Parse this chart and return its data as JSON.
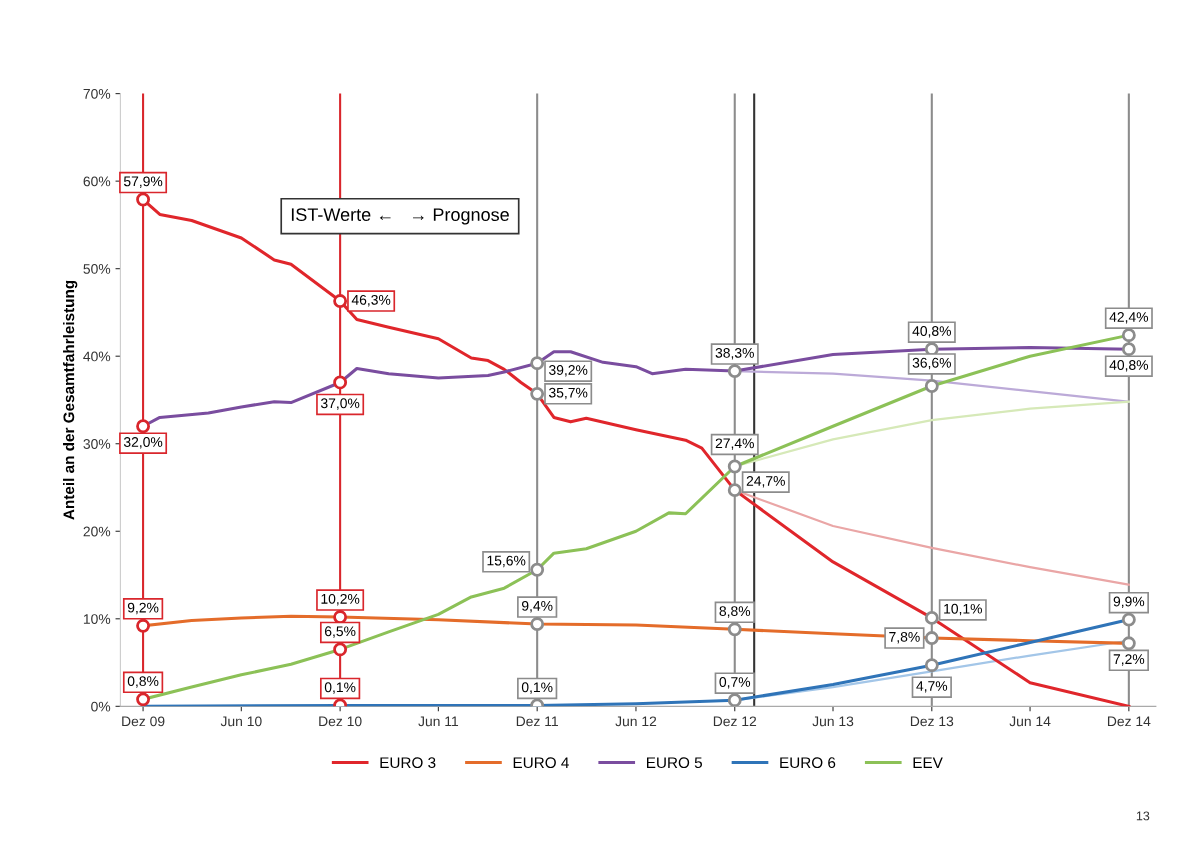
{
  "chart_data": {
    "type": "line",
    "ylabel": "Anteil an der Gesamtfahrleistung",
    "annotations": [
      "IST-Werte ←   → Prognose",
      "13"
    ],
    "xlim": [
      "2009-10-20",
      "2015-01-20"
    ],
    "xticks": [
      {
        "value": "2009-12",
        "label": "Dez 09"
      },
      {
        "value": "2010-06",
        "label": "Jun 10"
      },
      {
        "value": "2010-12",
        "label": "Dez 10"
      },
      {
        "value": "2011-06",
        "label": "Jun 11"
      },
      {
        "value": "2011-12",
        "label": "Dez 11"
      },
      {
        "value": "2012-06",
        "label": "Jun 12"
      },
      {
        "value": "2012-12",
        "label": "Dez 12"
      },
      {
        "value": "2013-06",
        "label": "Jun 13"
      },
      {
        "value": "2013-12",
        "label": "Dez 13"
      },
      {
        "value": "2014-06",
        "label": "Jun 14"
      },
      {
        "value": "2014-12",
        "label": "Dez 14"
      }
    ],
    "ylim": [
      0,
      70
    ],
    "yticks": [
      {
        "value": 0,
        "label": "0%"
      },
      {
        "value": 10,
        "label": "10%"
      },
      {
        "value": 20,
        "label": "20%"
      },
      {
        "value": 30,
        "label": "30%"
      },
      {
        "value": 40,
        "label": "40%"
      },
      {
        "value": 50,
        "label": "50%"
      },
      {
        "value": 60,
        "label": "60%"
      },
      {
        "value": 70,
        "label": "70%"
      }
    ],
    "grid": false,
    "legend": "bottom",
    "line_style": "solid",
    "ref_lines": [
      {
        "axis": "x",
        "value": "2009-12",
        "color": "#d9262c"
      },
      {
        "axis": "x",
        "value": "2010-12",
        "color": "#d9262c"
      },
      {
        "axis": "x",
        "value": "2011-12",
        "color": "#8c8c8c"
      },
      {
        "axis": "x",
        "value": "2012-12",
        "color": "#8c8c8c"
      },
      {
        "axis": "x",
        "value": "2013-01-06",
        "color": "#333333"
      },
      {
        "axis": "x",
        "value": "2013-12",
        "color": "#8c8c8c"
      },
      {
        "axis": "x",
        "value": "2014-12",
        "color": "#8c8c8c"
      }
    ],
    "series": [
      {
        "name": "EURO 3",
        "color": "#e0262b",
        "x": [
          "2009-12",
          "2010-01",
          "2010-03",
          "2010-06",
          "2010-08",
          "2010-09",
          "2010-12",
          "2011-01",
          "2011-03",
          "2011-06",
          "2011-08",
          "2011-09",
          "2011-10",
          "2011-11",
          "2011-12",
          "2012-01",
          "2012-02",
          "2012-03",
          "2012-06",
          "2012-09",
          "2012-10",
          "2012-12",
          "2013-06",
          "2013-12",
          "2014-06",
          "2014-12"
        ],
        "values": [
          57.9,
          56.2,
          55.5,
          53.5,
          51,
          50.5,
          46.3,
          44.2,
          43.3,
          42,
          39.8,
          39.5,
          38.5,
          37,
          35.7,
          33,
          32.5,
          32.9,
          31.6,
          30.4,
          29.5,
          24.7,
          16.5,
          10.1,
          2.7,
          0
        ],
        "value_labels": [
          "57,9%",
          null,
          null,
          null,
          null,
          null,
          "46,3%",
          null,
          null,
          null,
          null,
          null,
          null,
          null,
          "35,7%",
          null,
          null,
          null,
          null,
          null,
          null,
          "24,7%",
          null,
          "10,1%",
          null,
          null
        ]
      },
      {
        "name": "EURO 4",
        "color": "#e46c2a",
        "x": [
          "2009-12",
          "2010-03",
          "2010-06",
          "2010-09",
          "2010-12",
          "2011-06",
          "2011-12",
          "2012-06",
          "2012-12",
          "2013-06",
          "2013-12",
          "2014-06",
          "2014-12"
        ],
        "values": [
          9.2,
          9.8,
          10.1,
          10.3,
          10.2,
          9.9,
          9.4,
          9.3,
          8.8,
          8.3,
          7.8,
          7.5,
          7.2
        ],
        "value_labels": [
          "9,2%",
          null,
          null,
          null,
          "10,2%",
          null,
          "9,4%",
          null,
          "8,8%",
          null,
          "7,8%",
          null,
          "7,2%"
        ]
      },
      {
        "name": "EURO 5",
        "color": "#7a4d9f",
        "x": [
          "2009-12",
          "2010-01",
          "2010-04",
          "2010-06",
          "2010-08",
          "2010-09",
          "2010-12",
          "2011-01",
          "2011-03",
          "2011-06",
          "2011-09",
          "2011-10",
          "2011-12",
          "2012-01",
          "2012-02",
          "2012-04",
          "2012-06",
          "2012-07",
          "2012-09",
          "2012-12",
          "2013-06",
          "2013-12",
          "2014-06",
          "2014-12"
        ],
        "values": [
          32.0,
          33.0,
          33.5,
          34.2,
          34.8,
          34.7,
          37.0,
          38.6,
          38.0,
          37.5,
          37.8,
          38.2,
          39.2,
          40.5,
          40.5,
          39.3,
          38.8,
          38.0,
          38.5,
          38.3,
          40.2,
          40.8,
          41.0,
          40.8
        ],
        "value_labels": [
          "32,0%",
          null,
          null,
          null,
          null,
          null,
          "37,0%",
          null,
          null,
          null,
          null,
          null,
          "39,2%",
          null,
          null,
          null,
          null,
          null,
          null,
          "38,3%",
          null,
          "40,8%",
          null,
          "40,8%"
        ]
      },
      {
        "name": "EURO 6",
        "color": "#2f74b8",
        "x": [
          "2009-12",
          "2010-12",
          "2011-12",
          "2012-06",
          "2012-12",
          "2013-06",
          "2013-12",
          "2014-06",
          "2014-12"
        ],
        "values": [
          0,
          0.1,
          0.1,
          0.3,
          0.7,
          2.5,
          4.7,
          7.3,
          9.9
        ],
        "value_labels": [
          null,
          "0,1%",
          "0,1%",
          null,
          "0,7%",
          null,
          "4,7%",
          null,
          "9,9%"
        ]
      },
      {
        "name": "EEV",
        "color": "#8cc157",
        "x": [
          "2009-12",
          "2010-03",
          "2010-06",
          "2010-09",
          "2010-12",
          "2011-03",
          "2011-06",
          "2011-08",
          "2011-10",
          "2011-12",
          "2012-01",
          "2012-03",
          "2012-06",
          "2012-08",
          "2012-09",
          "2012-12",
          "2013-06",
          "2013-12",
          "2014-06",
          "2014-12"
        ],
        "values": [
          0.8,
          2.2,
          3.6,
          4.8,
          6.5,
          8.5,
          10.5,
          12.5,
          13.5,
          15.6,
          17.5,
          18.0,
          20,
          22.1,
          22,
          27.4,
          32,
          36.6,
          40,
          42.4
        ],
        "value_labels": [
          "0,8%",
          null,
          null,
          null,
          "6,5%",
          null,
          null,
          null,
          null,
          "15,6%",
          null,
          null,
          null,
          null,
          null,
          "27,4%",
          null,
          "36,6%",
          null,
          "42,4%"
        ]
      },
      {
        "color": "#eaa6a6",
        "x": [
          "2012-12",
          "2013-06",
          "2013-12",
          "2014-06",
          "2014-12"
        ],
        "values": [
          24.7,
          20.6,
          18.1,
          15.9,
          13.9
        ]
      },
      {
        "color": "#bcaad8",
        "x": [
          "2012-12",
          "2013-06",
          "2013-12",
          "2014-06",
          "2014-12"
        ],
        "values": [
          38.3,
          38.0,
          37.2,
          36.0,
          34.8
        ]
      },
      {
        "color": "#a3c6e8",
        "x": [
          "2012-12",
          "2013-06",
          "2013-12",
          "2014-06",
          "2014-12"
        ],
        "values": [
          0.7,
          2.2,
          4.0,
          5.8,
          7.5
        ]
      },
      {
        "color": "#d6e9b8",
        "x": [
          "2012-12",
          "2013-06",
          "2013-12",
          "2014-06",
          "2014-12"
        ],
        "values": [
          27.4,
          30.5,
          32.7,
          34.0,
          34.8
        ]
      }
    ]
  }
}
